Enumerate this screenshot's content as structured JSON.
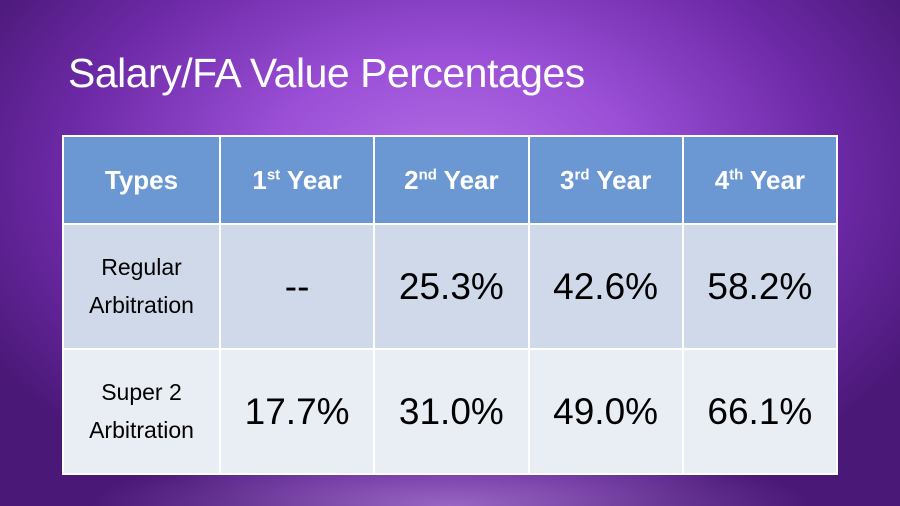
{
  "title": "Salary/FA Value Percentages",
  "headers": [
    {
      "num": "Types",
      "sup": ""
    },
    {
      "num": "1",
      "sup": "st",
      "rest": " Year"
    },
    {
      "num": "2",
      "sup": "nd",
      "rest": " Year"
    },
    {
      "num": "3",
      "sup": "rd",
      "rest": " Year"
    },
    {
      "num": "4",
      "sup": "th",
      "rest": " Year"
    }
  ],
  "rows": [
    {
      "line1": "Regular",
      "line2": "Arbitration",
      "values": [
        "--",
        "25.3%",
        "42.6%",
        "58.2%"
      ]
    },
    {
      "line1": "Super 2",
      "line2": "Arbitration",
      "values": [
        "17.7%",
        "31.0%",
        "49.0%",
        "66.1%"
      ]
    }
  ]
}
